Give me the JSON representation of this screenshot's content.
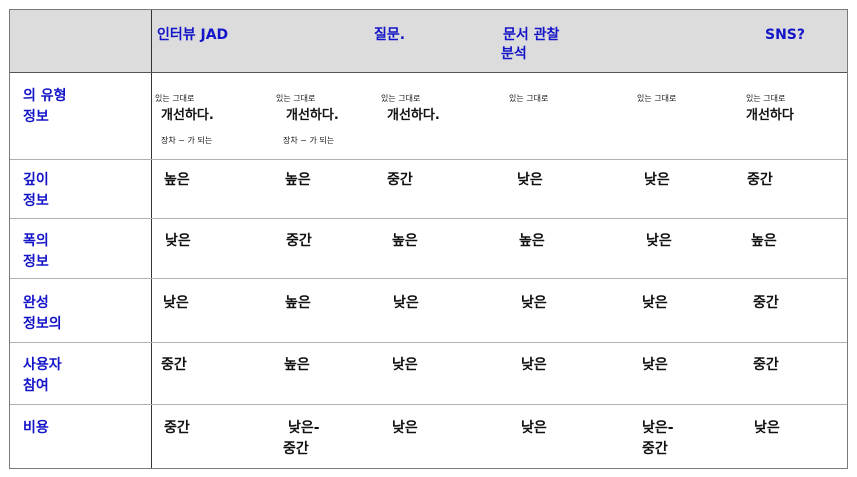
{
  "header": {
    "c1": "인터뷰 JAD",
    "c2": "질문.",
    "c3_line1": "문서 관찰",
    "c3_line2": "분석",
    "c4": "SNS?"
  },
  "rows": [
    {
      "label": [
        "의 유형",
        "정보"
      ]
    },
    {
      "label": [
        "깊이",
        "정보"
      ],
      "cells": [
        "높은",
        "높은",
        "중간",
        "낮은",
        "낮은",
        "중간"
      ]
    },
    {
      "label": [
        "폭의",
        "정보"
      ],
      "cells": [
        "낮은",
        "중간",
        "높은",
        "높은",
        "낮은",
        "높은"
      ]
    },
    {
      "label": [
        "완성",
        "정보의"
      ],
      "cells": [
        "낮은",
        "높은",
        "낮은",
        "낮은",
        "낮은",
        "중간"
      ]
    },
    {
      "label": [
        "사용자",
        "참여"
      ],
      "cells": [
        "중간",
        "높은",
        "낮은",
        "낮은",
        "낮은",
        "중간"
      ]
    },
    {
      "label": [
        "비용"
      ],
      "cells": [
        [
          "중간"
        ],
        [
          "낮은-",
          "중간"
        ],
        [
          "낮은"
        ],
        [
          "낮은"
        ],
        [
          "낮은-",
          "중간"
        ],
        [
          "낮은"
        ]
      ]
    }
  ],
  "type_row": {
    "small": "있는 그대로",
    "big": "개선하다.",
    "big_nodot": "개선하다",
    "note": "장차 ~ 가 되는"
  }
}
